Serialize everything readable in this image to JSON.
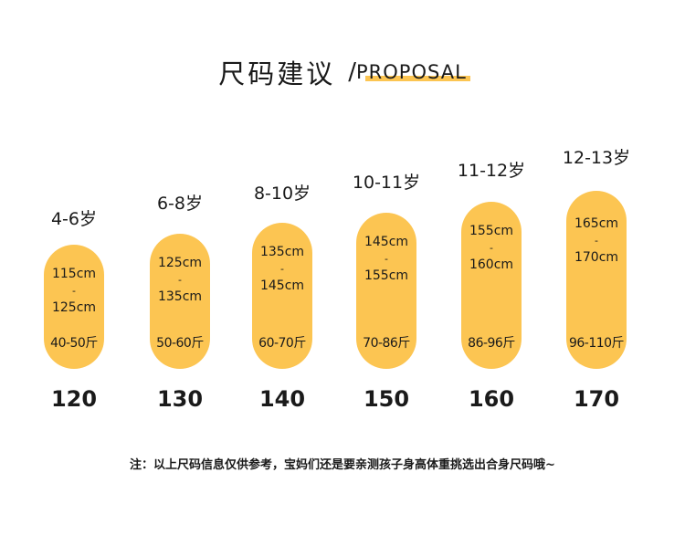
{
  "title": {
    "cn": "尺码建议",
    "separator": "/",
    "en": "PROPOSAL"
  },
  "columns": [
    {
      "age": "4-6岁",
      "height_from": "115cm",
      "dash": "-",
      "height_to": "125cm",
      "weight": "40-50斤",
      "size": "120"
    },
    {
      "age": "6-8岁",
      "height_from": "125cm",
      "dash": "-",
      "height_to": "135cm",
      "weight": "50-60斤",
      "size": "130"
    },
    {
      "age": "8-10岁",
      "height_from": "135cm",
      "dash": "-",
      "height_to": "145cm",
      "weight": "60-70斤",
      "size": "140"
    },
    {
      "age": "10-11岁",
      "height_from": "145cm",
      "dash": "-",
      "height_to": "155cm",
      "weight": "70-86斤",
      "size": "150"
    },
    {
      "age": "11-12岁",
      "height_from": "155cm",
      "dash": "-",
      "height_to": "160cm",
      "weight": "86-96斤",
      "size": "160"
    },
    {
      "age": "12-13岁",
      "height_from": "165cm",
      "dash": "-",
      "height_to": "170cm",
      "weight": "96-110斤",
      "size": "170"
    }
  ],
  "note": "注：以上尺码信息仅供参考，宝妈们还是要亲测孩子身高体重挑选出合身尺码哦~",
  "colors": {
    "pill": "#fcc552",
    "highlight": "#fcc552",
    "text": "#1a1a1a"
  }
}
